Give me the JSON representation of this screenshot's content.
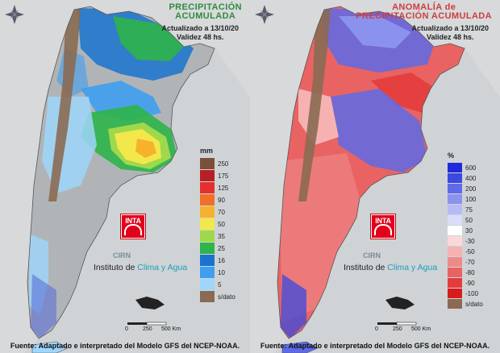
{
  "left": {
    "title_lines": [
      "PRECIPITACIÓN",
      "ACUMULADA"
    ],
    "updated": "Actualizado a 13/10/20",
    "validity": "Validez 48 hs.",
    "legend": {
      "unit": "mm",
      "items": [
        {
          "label": "250",
          "color": "#7b4f3a"
        },
        {
          "label": "175",
          "color": "#b61f25"
        },
        {
          "label": "125",
          "color": "#e3302f"
        },
        {
          "label": "90",
          "color": "#f0702a"
        },
        {
          "label": "70",
          "color": "#f6b22c"
        },
        {
          "label": "50",
          "color": "#f2e84b"
        },
        {
          "label": "35",
          "color": "#9fd94b"
        },
        {
          "label": "25",
          "color": "#2eb44a"
        },
        {
          "label": "16",
          "color": "#1a73cf"
        },
        {
          "label": "10",
          "color": "#3f9ef0"
        },
        {
          "label": "5",
          "color": "#9fd6fb"
        },
        {
          "label": "s/dato",
          "color": "#8a6a52"
        }
      ]
    },
    "logo_text": "INTA",
    "cirn": "CIRN",
    "institute_pre": "Instituto de ",
    "institute_hl": "Clima y Agua",
    "scale_labels": [
      "0",
      "250",
      "500 Km"
    ],
    "footer": "Fuente: Adaptado e interpretado del Modelo GFS del NCEP-NOAA."
  },
  "right": {
    "title_lines": [
      "ANOMALÍA de",
      "PRECIPITACIÓN ACUMULADA"
    ],
    "updated": "Actualizado a 13/10/20",
    "validity": "Validez 48 hs.",
    "legend": {
      "unit": "%",
      "items": [
        {
          "label": "600",
          "color": "#1f2bd6"
        },
        {
          "label": "400",
          "color": "#3a49df"
        },
        {
          "label": "200",
          "color": "#5e6ae6"
        },
        {
          "label": "100",
          "color": "#8a92ee"
        },
        {
          "label": "75",
          "color": "#b6bbf5"
        },
        {
          "label": "50",
          "color": "#dadcfa"
        },
        {
          "label": "30",
          "color": "#ffffff"
        },
        {
          "label": "-30",
          "color": "#fbd8d8"
        },
        {
          "label": "-50",
          "color": "#f6b1b1"
        },
        {
          "label": "-70",
          "color": "#f08a8a"
        },
        {
          "label": "-80",
          "color": "#e96363"
        },
        {
          "label": "-90",
          "color": "#e33c3c"
        },
        {
          "label": "-100",
          "color": "#d91b1b"
        },
        {
          "label": "s/dato",
          "color": "#8a6a52"
        }
      ]
    },
    "logo_text": "INTA",
    "cirn": "CIRN",
    "institute_pre": "Instituto de ",
    "institute_hl": "Clima y Agua",
    "scale_labels": [
      "0",
      "250",
      "500 Km"
    ],
    "footer": "Fuente: Adaptado e interpretado del Modelo GFS del NCEP-NOAA."
  }
}
